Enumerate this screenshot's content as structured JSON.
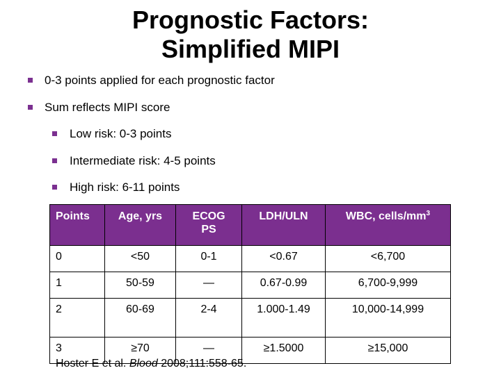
{
  "title": {
    "line1": "Prognostic Factors:",
    "line2": "Simplified MIPI"
  },
  "bullets": [
    "0-3 points applied for each prognostic factor",
    "Sum reflects MIPI score"
  ],
  "sub_bullets": [
    "Low risk: 0-3 points",
    "Intermediate risk: 4-5 points",
    "High risk: 6-11 points"
  ],
  "table": {
    "headers": {
      "points": "Points",
      "age": "Age, yrs",
      "ecog_line1": "ECOG",
      "ecog_line2": "PS",
      "ldh": "LDH/ULN",
      "wbc": "WBC, cells/mm",
      "wbc_sup": "3"
    },
    "rows": [
      [
        "0",
        "<50",
        "0-1",
        "<0.67",
        "<6,700"
      ],
      [
        "1",
        "50-59",
        "—",
        "0.67-0.99",
        "6,700-9,999"
      ],
      [
        "2",
        "60-69",
        "2-4",
        "1.000-1.49",
        "10,000-14,999"
      ],
      [
        "3",
        "≥70",
        "—",
        "≥1.5000",
        "≥15,000"
      ]
    ]
  },
  "citation": {
    "authors": "Hoster E et al. ",
    "journal": "Blood",
    "ref": " 2008;111:558-65."
  },
  "colors": {
    "header_bg": "#7B2F8F",
    "bullet": "#7B3090"
  }
}
